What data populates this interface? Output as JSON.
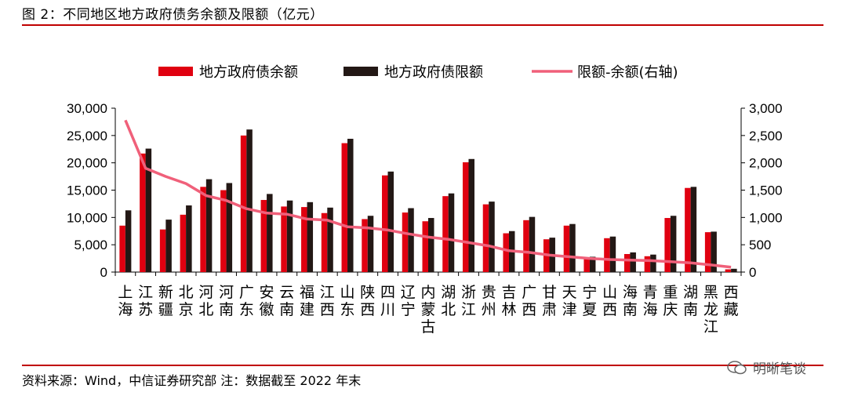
{
  "figure": {
    "title": "图 2：不同地区地方政府债务余额及限额（亿元）",
    "source": "资料来源：Wind，中信证券研究部  注：数据截至 2022 年末",
    "watermark": "明晰笔谈",
    "watermark_icon": "wechat-icon"
  },
  "chart_data": {
    "type": "bar",
    "categories": [
      "上海",
      "江苏",
      "新疆",
      "北京",
      "河北",
      "河南",
      "广东",
      "安徽",
      "云南",
      "福建",
      "江西",
      "山东",
      "陕西",
      "四川",
      "辽宁",
      "内蒙古",
      "湖北",
      "浙江",
      "贵州",
      "吉林",
      "广西",
      "甘肃",
      "天津",
      "宁夏",
      "山西",
      "海南",
      "青海",
      "重庆",
      "湖南",
      "黑龙江",
      "西藏"
    ],
    "series": [
      {
        "name": "地方政府债余额",
        "type": "bar",
        "axis": "left",
        "color": "#e00010",
        "values": [
          8500,
          21700,
          7800,
          10500,
          15600,
          15000,
          25000,
          13200,
          12000,
          11900,
          10800,
          23600,
          9700,
          17700,
          10900,
          9300,
          13900,
          20100,
          12400,
          7100,
          9500,
          6000,
          8500,
          2500,
          6200,
          3300,
          2900,
          9900,
          15400,
          7300,
          500
        ]
      },
      {
        "name": "地方政府债限额",
        "type": "bar",
        "axis": "left",
        "color": "#231815",
        "values": [
          11300,
          22600,
          9600,
          12200,
          17000,
          16300,
          26100,
          14300,
          13100,
          12800,
          11800,
          24400,
          10300,
          18400,
          11700,
          9900,
          14400,
          20700,
          12900,
          7500,
          10100,
          6300,
          8800,
          2800,
          6500,
          3600,
          3200,
          10300,
          15600,
          7400,
          600
        ]
      },
      {
        "name": "限额-余额(右轴)",
        "type": "line",
        "axis": "right",
        "color": "#f0607a",
        "values": [
          2780,
          1900,
          1750,
          1620,
          1400,
          1310,
          1160,
          1080,
          1060,
          970,
          950,
          830,
          810,
          770,
          700,
          640,
          600,
          540,
          480,
          390,
          360,
          310,
          280,
          250,
          230,
          220,
          210,
          190,
          170,
          130,
          90
        ]
      }
    ],
    "y_left": {
      "ticks": [
        "0",
        "5,000",
        "10,000",
        "15,000",
        "20,000",
        "25,000",
        "30,000"
      ],
      "ylim": [
        0,
        30000
      ]
    },
    "y_right": {
      "ticks": [
        "0",
        "500",
        "1,000",
        "1,500",
        "2,000",
        "2,500",
        "3,000"
      ],
      "ylim": [
        0,
        3000
      ]
    },
    "legend_position": "top",
    "grid": false
  }
}
